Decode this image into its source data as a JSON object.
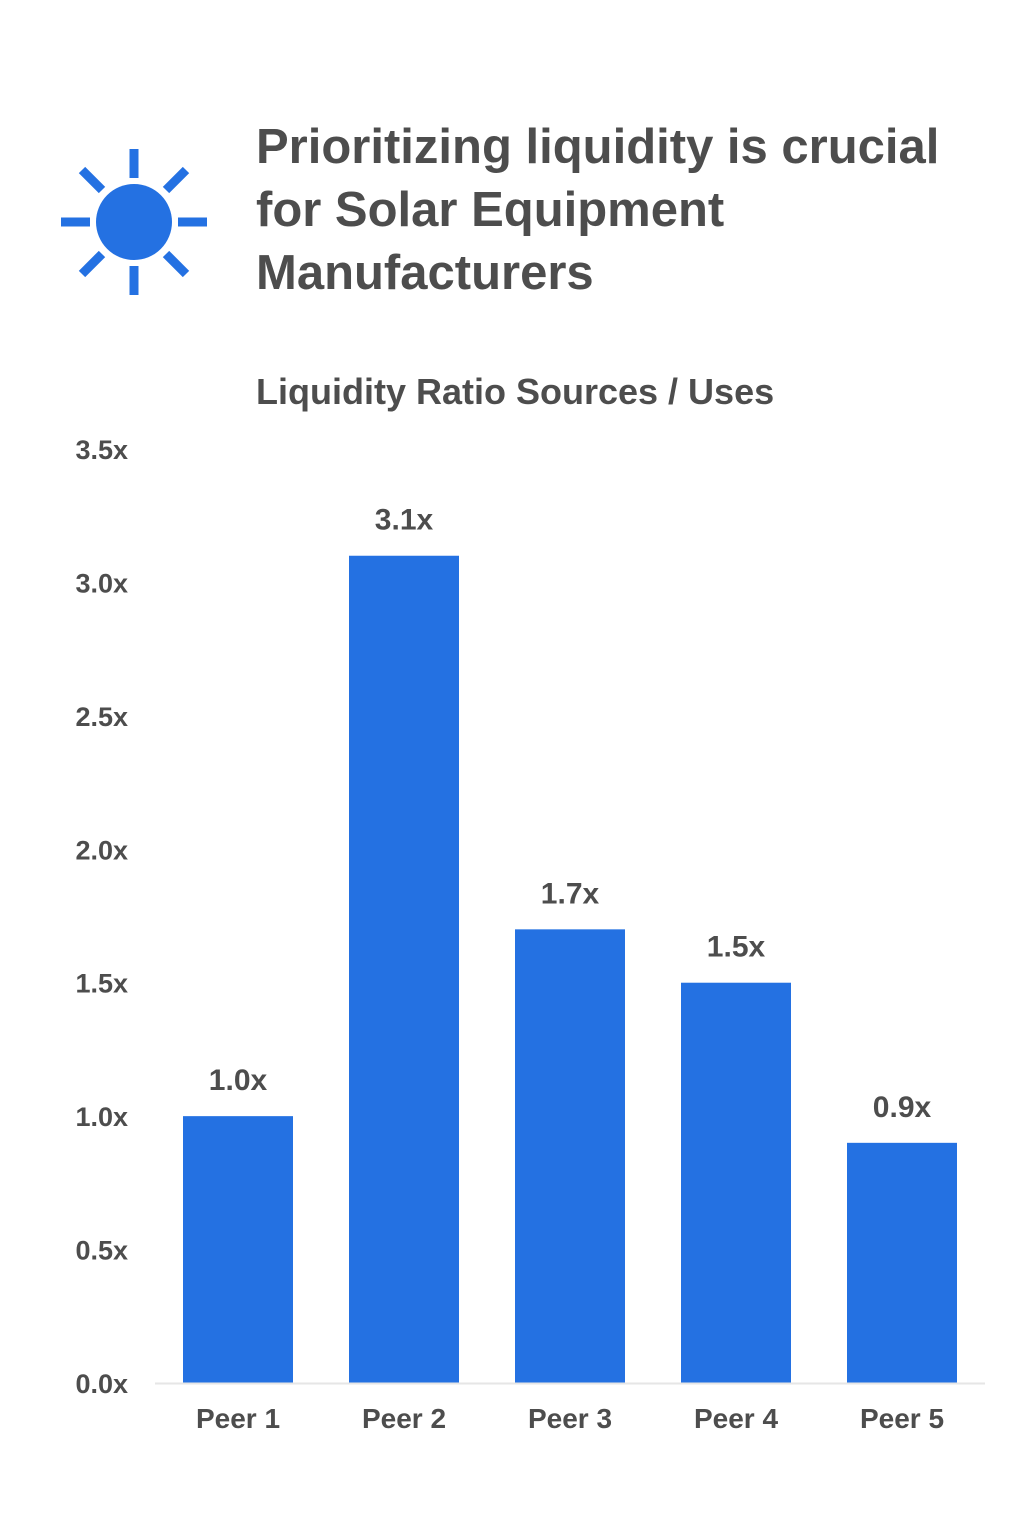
{
  "header": {
    "icon": "sun-icon",
    "title": "Prioritizing liquidity is crucial for Solar Equipment Manufacturers"
  },
  "colors": {
    "bar": "#2471e2",
    "text": "#4d4d4d",
    "axis": "#e6e6e6",
    "icon": "#2471e2"
  },
  "chart_data": {
    "type": "bar",
    "title": "Liquidity Ratio Sources / Uses",
    "xlabel": "",
    "ylabel": "",
    "categories": [
      "Peer 1",
      "Peer 2",
      "Peer 3",
      "Peer 4",
      "Peer 5"
    ],
    "values": [
      1.0,
      3.1,
      1.7,
      1.5,
      0.9
    ],
    "value_labels": [
      "1.0x",
      "3.1x",
      "1.7x",
      "1.5x",
      "0.9x"
    ],
    "ylim": [
      0,
      3.5
    ],
    "y_ticks": [
      0,
      0.5,
      1.0,
      1.5,
      2.0,
      2.5,
      3.0,
      3.5
    ],
    "y_tick_labels": [
      "0.0x",
      "0.5x",
      "1.0x",
      "1.5x",
      "2.0x",
      "2.5x",
      "3.0x",
      "3.5x"
    ],
    "grid": false,
    "legend": "none"
  }
}
